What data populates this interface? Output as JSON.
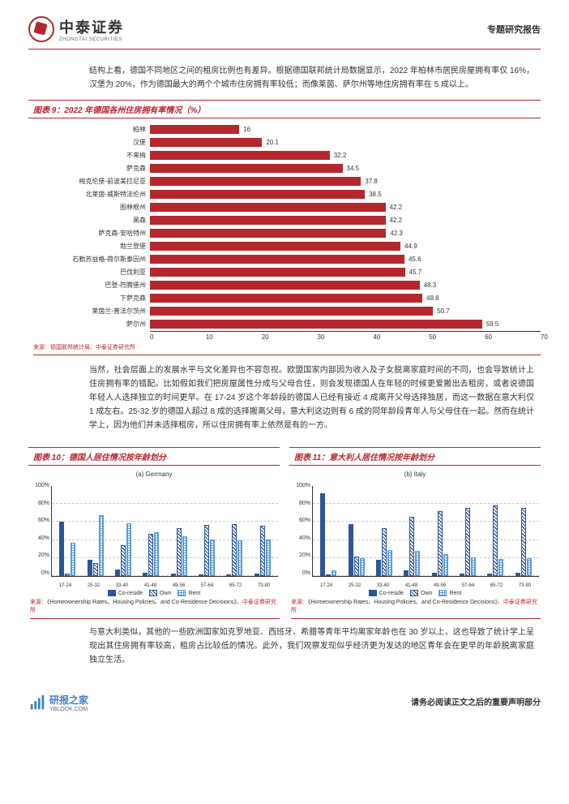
{
  "header": {
    "logo_cn": "中泰证券",
    "logo_en": "ZHONGTAI SECURITIES",
    "report_type": "专题研究报告"
  },
  "para1": "结构上看，德国不同地区之间的租房比例也有差异。根据德国联邦统计局数据显示，2022 年柏林市居民房屋拥有率仅 16%，汉堡为 20%，作为德国最大的两个个城市住房拥有率较低；而像莱茵、萨尔州等地住房拥有率在 5 成以上。",
  "fig9": {
    "title": "图表 9：2022 年德国各州住房拥有率情况（%）",
    "source": "来源：德国联邦统计局、中泰证券研究所",
    "categories": [
      "柏林",
      "汉堡",
      "不来梅",
      "萨克森",
      "梅克伦堡-前波美拉尼亚",
      "北莱茵-威斯特法伦州",
      "图林根州",
      "黑森",
      "萨克森-安哈特州",
      "勃兰登堡",
      "石勒苏益格-荷尔斯泰因州",
      "巴伐利亚",
      "巴登-符腾堡州",
      "下萨克森",
      "莱茵兰-普法尔茨州",
      "萨尔州"
    ],
    "values": [
      16,
      20.1,
      32.2,
      34.5,
      37.8,
      38.5,
      42.2,
      42.2,
      42.3,
      44.9,
      45.6,
      45.7,
      48.3,
      48.8,
      50.7,
      59.5
    ],
    "bar_color": "#b4282d",
    "xmax": 70,
    "xtick_step": 10
  },
  "para2": "当然，社会层面上的发展水平与文化差异也不容忽视。欧盟国家内部因为收入及子女脱离家庭时间的不同，也会导致统计上住房拥有率的错配。比如假如我们把房屋属性分成与父母合住，则会发现德国人在年轻的时候更爱搬出去租房，或者说德国年轻人人选择独立的时间更早。在 17-24 岁这个年龄段的德国人已经有接近 4 成离开父母选择独居，而这一数据在意大利仅 1 成左右。25-32 岁的德国人超过 8 成的选择搬离父母，意大利这边则有 6 成的同年龄段青年人与父母住在一起。然而在统计学上，因为他们并未选择租房，所以住房拥有率上依然是有的一方。",
  "fig10": {
    "title": "图表 10：德国人居住情况按年龄划分",
    "subtitle": "(a) Germany",
    "source_prefix": "来源：",
    "source_title": "《Homeownership Rates、Housing Policies、and Co-Residence Decisions》",
    "source_suffix": "、中泰证券研究所"
  },
  "fig11": {
    "title": "图表 11：意大利人居住情况按年龄划分",
    "subtitle": "(b) Italy",
    "source_prefix": "来源：",
    "source_title": "《Homeownership Rates、Housing Policies、and Co-Residence Decisions》",
    "source_suffix": "、中泰证券研究所"
  },
  "stacked": {
    "x_labels": [
      "17-24",
      "25-32",
      "33-40",
      "41-48",
      "49-56",
      "57-64",
      "65-72",
      "73-80"
    ],
    "y_ticks": [
      "100%",
      "80%",
      "60%",
      "40%",
      "20%",
      "0%"
    ],
    "germany": {
      "co": [
        60,
        18,
        7,
        4,
        3,
        2,
        2,
        3
      ],
      "own": [
        3,
        14,
        34,
        47,
        53,
        57,
        58,
        56
      ],
      "rent": [
        37,
        68,
        59,
        49,
        44,
        41,
        40,
        41
      ]
    },
    "italy": {
      "co": [
        92,
        58,
        18,
        6,
        4,
        3,
        3,
        4
      ],
      "own": [
        2,
        22,
        53,
        66,
        72,
        76,
        78,
        76
      ],
      "rent": [
        6,
        20,
        29,
        28,
        24,
        21,
        19,
        20
      ]
    },
    "legend": [
      "Co-reside",
      "Own",
      "Rent"
    ],
    "colors": {
      "co": "#2f5597",
      "own_pattern": "#2f5597",
      "rent_pattern": "#5b9bd5"
    }
  },
  "para3": "与意大利类似，其他的一些欧洲国家如克罗地亚、西班牙、希腊等青年平均离家年龄也在 30 岁以上，这也导致了统计学上呈现出其住房拥有率较高，租房占比较低的情况。此外，我们观察发现似乎经济更为发达的地区青年会在更早的年龄脱离家庭独立生活。",
  "footer": {
    "logo": "研报之家",
    "logo_sub": "YBLOOK.COM",
    "right": "请务必阅读正文之后的重要声明部分"
  }
}
